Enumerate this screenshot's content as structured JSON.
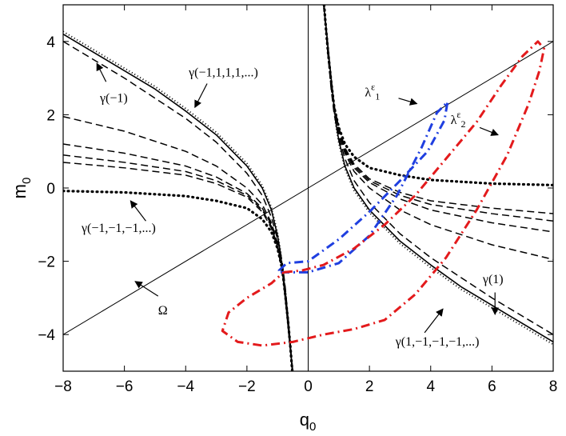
{
  "chart_data": {
    "type": "line",
    "title": "",
    "xlabel": "q",
    "xlabel_sub": "0",
    "ylabel": "m",
    "ylabel_sub": "0",
    "xlim": [
      -8,
      8
    ],
    "ylim": [
      -5,
      5
    ],
    "xticks": [
      -8,
      -6,
      -4,
      -2,
      0,
      2,
      4,
      6,
      8
    ],
    "yticks": [
      -4,
      -2,
      0,
      2,
      4
    ],
    "grid": false,
    "legend": "none",
    "colors": {
      "black": "#000000",
      "red": "#e31a1c",
      "blue": "#1f3fe0"
    },
    "series": [
      {
        "style": "solid-thin",
        "color": "#000000",
        "x": [
          -8,
          8
        ],
        "y": [
          -4,
          4
        ]
      },
      {
        "style": "solid-thin",
        "color": "#000000",
        "x": [
          0,
          0
        ],
        "y": [
          -5,
          5
        ]
      },
      {
        "style": "solid",
        "color": "#000000",
        "x": [
          -8,
          -7,
          -6,
          -5,
          -4,
          -3,
          -2,
          -1.5,
          -1.2,
          -1.0,
          -0.9,
          -0.8,
          -0.7,
          -0.62,
          -0.56,
          -0.5
        ],
        "y": [
          4.2,
          3.7,
          3.2,
          2.7,
          2.1,
          1.45,
          0.6,
          0.0,
          -0.6,
          -1.3,
          -1.8,
          -2.6,
          -3.4,
          -4.1,
          -4.6,
          -5.0
        ]
      },
      {
        "style": "solid",
        "color": "#000000",
        "x": [
          0.5,
          0.56,
          0.62,
          0.7,
          0.8,
          0.9,
          1.0,
          1.2,
          1.5,
          2,
          3,
          4,
          5,
          6,
          7,
          8
        ],
        "y": [
          5.0,
          4.6,
          4.1,
          3.4,
          2.6,
          1.8,
          1.3,
          0.6,
          0.0,
          -0.6,
          -1.45,
          -2.1,
          -2.7,
          -3.2,
          -3.7,
          -4.2
        ]
      },
      {
        "style": "dotted",
        "color": "#000000",
        "x": [
          -8,
          -7,
          -6,
          -5,
          -4,
          -3,
          -2,
          -1.5,
          -1.2,
          -1.0,
          -0.9,
          -0.8,
          -0.7,
          -0.62,
          -0.56,
          -0.5
        ],
        "y": [
          4.27,
          3.77,
          3.27,
          2.77,
          2.17,
          1.52,
          0.67,
          0.07,
          -0.53,
          -1.23,
          -1.73,
          -2.53,
          -3.33,
          -4.03,
          -4.53,
          -5.0
        ]
      },
      {
        "style": "dotted",
        "color": "#000000",
        "x": [
          0.5,
          0.56,
          0.62,
          0.7,
          0.8,
          0.9,
          1.0,
          1.2,
          1.5,
          2,
          3,
          4,
          5,
          6,
          7,
          8
        ],
        "y": [
          5.0,
          4.53,
          4.03,
          3.33,
          2.53,
          1.73,
          1.23,
          0.53,
          -0.07,
          -0.67,
          -1.52,
          -2.17,
          -2.77,
          -3.27,
          -3.77,
          -4.27
        ]
      },
      {
        "style": "dashed",
        "color": "#000000",
        "x": [
          -8,
          -6,
          -4,
          -3,
          -2,
          -1.5,
          -1.2,
          -1.0,
          -0.85,
          -0.75,
          -0.65,
          -0.58,
          -0.52
        ],
        "y": [
          4.0,
          3.0,
          1.9,
          1.25,
          0.4,
          -0.2,
          -0.8,
          -1.4,
          -2.0,
          -2.7,
          -3.6,
          -4.3,
          -5.0
        ]
      },
      {
        "style": "dashed",
        "color": "#000000",
        "x": [
          0.52,
          0.58,
          0.65,
          0.75,
          0.85,
          1.0,
          1.2,
          1.5,
          2,
          3,
          4,
          6,
          8
        ],
        "y": [
          5.0,
          4.3,
          3.6,
          2.7,
          2.0,
          1.4,
          0.8,
          0.2,
          -0.4,
          -1.25,
          -1.9,
          -3.0,
          -4.0
        ]
      },
      {
        "style": "dashed",
        "color": "#000000",
        "x": [
          -8,
          -6,
          -4,
          -3,
          -2,
          -1.5,
          -1.2,
          -1.0,
          -0.85,
          -0.75,
          -0.65,
          -0.58,
          -0.52
        ],
        "y": [
          1.95,
          1.55,
          1.0,
          0.6,
          0.0,
          -0.45,
          -0.95,
          -1.5,
          -2.1,
          -2.8,
          -3.6,
          -4.3,
          -5.0
        ]
      },
      {
        "style": "dashed",
        "color": "#000000",
        "x": [
          0.52,
          0.58,
          0.65,
          0.75,
          0.85,
          1.0,
          1.2,
          1.5,
          2,
          3,
          4,
          6,
          8
        ],
        "y": [
          5.0,
          4.3,
          3.6,
          2.8,
          2.1,
          1.5,
          0.95,
          0.45,
          0.0,
          -0.6,
          -1.0,
          -1.55,
          -1.95
        ]
      },
      {
        "style": "dashed",
        "color": "#000000",
        "x": [
          -8,
          -6,
          -4,
          -3,
          -2,
          -1.5,
          -1.2,
          -1.0,
          -0.85,
          -0.75,
          -0.65,
          -0.58,
          -0.52
        ],
        "y": [
          1.2,
          0.95,
          0.6,
          0.3,
          -0.15,
          -0.55,
          -1.0,
          -1.55,
          -2.15,
          -2.85,
          -3.65,
          -4.3,
          -5.0
        ]
      },
      {
        "style": "dashed",
        "color": "#000000",
        "x": [
          0.52,
          0.58,
          0.65,
          0.75,
          0.85,
          1.0,
          1.2,
          1.5,
          2,
          3,
          4,
          6,
          8
        ],
        "y": [
          5.0,
          4.3,
          3.65,
          2.85,
          2.15,
          1.55,
          1.0,
          0.55,
          0.15,
          -0.3,
          -0.6,
          -0.95,
          -1.2
        ]
      },
      {
        "style": "dashed",
        "color": "#000000",
        "x": [
          -8,
          -6,
          -4,
          -3,
          -2,
          -1.5,
          -1.2,
          -1.0,
          -0.85,
          -0.75,
          -0.65,
          -0.58,
          -0.52
        ],
        "y": [
          0.9,
          0.7,
          0.45,
          0.2,
          -0.2,
          -0.6,
          -1.05,
          -1.6,
          -2.2,
          -2.9,
          -3.7,
          -4.35,
          -5.0
        ]
      },
      {
        "style": "dashed",
        "color": "#000000",
        "x": [
          0.52,
          0.58,
          0.65,
          0.75,
          0.85,
          1.0,
          1.2,
          1.5,
          2,
          3,
          4,
          6,
          8
        ],
        "y": [
          5.0,
          4.35,
          3.7,
          2.9,
          2.2,
          1.6,
          1.05,
          0.6,
          0.2,
          -0.2,
          -0.45,
          -0.7,
          -0.9
        ]
      },
      {
        "style": "dashed",
        "color": "#000000",
        "x": [
          -8,
          -6,
          -4,
          -3,
          -2,
          -1.5,
          -1.2,
          -1.0,
          -0.85,
          -0.75,
          -0.65,
          -0.58,
          -0.52
        ],
        "y": [
          0.7,
          0.55,
          0.35,
          0.12,
          -0.25,
          -0.65,
          -1.1,
          -1.65,
          -2.25,
          -2.95,
          -3.7,
          -4.35,
          -5.0
        ]
      },
      {
        "style": "dashed",
        "color": "#000000",
        "x": [
          0.52,
          0.58,
          0.65,
          0.75,
          0.85,
          1.0,
          1.2,
          1.5,
          2,
          3,
          4,
          6,
          8
        ],
        "y": [
          5.0,
          4.35,
          3.7,
          2.95,
          2.25,
          1.65,
          1.1,
          0.65,
          0.25,
          -0.12,
          -0.35,
          -0.55,
          -0.7
        ]
      },
      {
        "style": "dotted-bold",
        "color": "#000000",
        "x": [
          -8,
          -6,
          -4,
          -3,
          -2,
          -1.5,
          -1.2,
          -1.0,
          -0.85,
          -0.75,
          -0.65,
          -0.58,
          -0.52
        ],
        "y": [
          -0.08,
          -0.12,
          -0.22,
          -0.35,
          -0.55,
          -0.85,
          -1.2,
          -1.65,
          -2.2,
          -2.9,
          -3.7,
          -4.35,
          -5.0
        ]
      },
      {
        "style": "dotted-bold",
        "color": "#000000",
        "x": [
          0.52,
          0.58,
          0.65,
          0.75,
          0.85,
          1.0,
          1.2,
          1.5,
          2,
          3,
          4,
          6,
          8
        ],
        "y": [
          5.0,
          4.35,
          3.7,
          2.9,
          2.2,
          1.65,
          1.2,
          0.85,
          0.55,
          0.35,
          0.22,
          0.12,
          0.08
        ]
      },
      {
        "style": "dash-dot",
        "color": "#1f3fe0",
        "x": [
          -0.9,
          0.0,
          1.0,
          2.0,
          2.9,
          3.7,
          4.2,
          4.55,
          4.45,
          3.9,
          3.0,
          2.0,
          1.0,
          0.0,
          -0.7,
          -0.95,
          -0.9
        ],
        "y": [
          -2.3,
          -2.3,
          -2.05,
          -1.3,
          -0.2,
          1.1,
          2.05,
          2.35,
          1.85,
          1.0,
          0.2,
          -0.65,
          -1.4,
          -2.0,
          -2.05,
          -2.25,
          -2.3
        ]
      },
      {
        "style": "dash-dot",
        "color": "#e31a1c",
        "x": [
          -0.8,
          -0.2,
          0.5,
          1.5,
          2.5,
          3.5,
          4.5,
          5.5,
          6.3,
          7.0,
          7.5,
          7.7,
          7.55,
          7.2,
          6.5,
          5.5,
          4.5,
          3.5,
          2.5,
          1.5,
          0.5,
          -0.5,
          -1.5,
          -2.3,
          -2.8,
          -2.6,
          -2.0,
          -1.2,
          -0.8
        ],
        "y": [
          -2.3,
          -2.25,
          -2.1,
          -1.65,
          -1.0,
          -0.2,
          0.8,
          1.8,
          2.8,
          3.6,
          4.0,
          3.8,
          3.2,
          2.3,
          0.9,
          -0.6,
          -1.9,
          -2.9,
          -3.6,
          -3.85,
          -4.0,
          -4.2,
          -4.3,
          -4.2,
          -3.9,
          -3.4,
          -3.0,
          -2.6,
          -2.3
        ]
      }
    ],
    "annotations": [
      {
        "text": "γ(−1,1,1,1,...)",
        "x": -3.9,
        "y": 3.05,
        "arrow_from": [
          -3.3,
          2.85
        ],
        "arrow_to": [
          -3.7,
          2.2
        ]
      },
      {
        "text": "γ(−1)",
        "x": -6.8,
        "y": 2.35,
        "arrow_from": [
          -6.6,
          2.9
        ],
        "arrow_to": [
          -6.9,
          3.4
        ]
      },
      {
        "text": "λ",
        "sup": "ε",
        "sub": "1",
        "x": 1.85,
        "y": 2.5,
        "arrow_from": [
          2.95,
          2.45
        ],
        "arrow_to": [
          3.55,
          2.3
        ]
      },
      {
        "text": "λ",
        "sup": "ε",
        "sub": "2",
        "x": 4.65,
        "y": 1.75,
        "arrow_from": [
          5.6,
          1.65
        ],
        "arrow_to": [
          6.2,
          1.45
        ]
      },
      {
        "text": "γ(−1,−1,−1,...)",
        "x": -7.4,
        "y": -1.2,
        "arrow_from": [
          -5.3,
          -0.9
        ],
        "arrow_to": [
          -5.8,
          -0.35
        ]
      },
      {
        "text": "Ω",
        "x": -4.9,
        "y": -3.45,
        "arrow_from": [
          -4.9,
          -2.95
        ],
        "arrow_to": [
          -5.65,
          -2.55
        ]
      },
      {
        "text": "γ(1)",
        "x": 5.7,
        "y": -2.6,
        "arrow_from": [
          6.1,
          -2.85
        ],
        "arrow_to": [
          6.1,
          -3.45
        ]
      },
      {
        "text": "γ(1,−1,−1,−1,...)",
        "x": 2.85,
        "y": -4.3,
        "arrow_from": [
          3.8,
          -3.95
        ],
        "arrow_to": [
          4.4,
          -3.3
        ]
      }
    ]
  }
}
